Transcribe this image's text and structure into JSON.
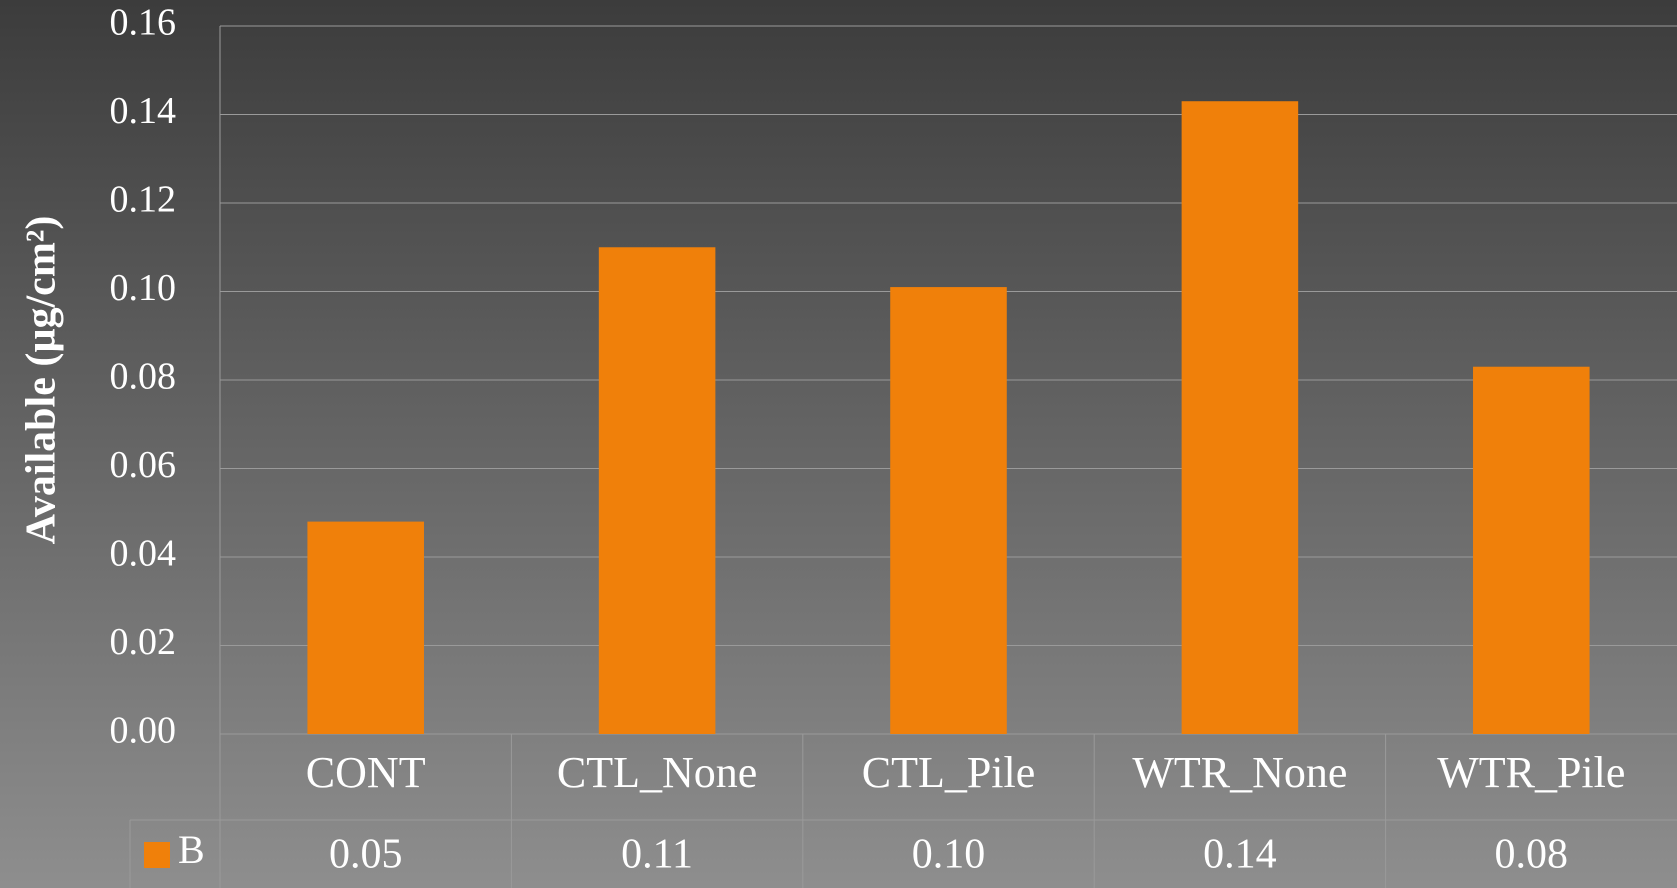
{
  "chart_data": {
    "type": "bar",
    "y_label": "Available (µg/cm²)",
    "categories": [
      "CONT",
      "CTL_None",
      "CTL_Pile",
      "WTR_None",
      "WTR_Pile"
    ],
    "series": [
      {
        "name": "B",
        "color": "#f0800a",
        "values": [
          0.048,
          0.11,
          0.101,
          0.143,
          0.083
        ],
        "value_labels": [
          "0.05",
          "0.11",
          "0.10",
          "0.14",
          "0.08"
        ]
      }
    ],
    "ylim": [
      0,
      0.16
    ],
    "yticks": [
      {
        "value": 0,
        "label": "0.00"
      },
      0.02,
      0.04,
      0.06,
      0.08,
      {
        "value": 0.1,
        "label": "0.10"
      },
      0.12,
      0.14,
      0.16
    ],
    "grid": true,
    "data_table": true
  }
}
